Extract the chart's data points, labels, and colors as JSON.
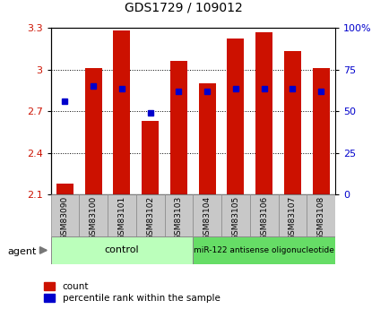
{
  "title": "GDS1729 / 109012",
  "samples": [
    "GSM83090",
    "GSM83100",
    "GSM83101",
    "GSM83102",
    "GSM83103",
    "GSM83104",
    "GSM83105",
    "GSM83106",
    "GSM83107",
    "GSM83108"
  ],
  "red_bar_values": [
    2.18,
    3.01,
    3.28,
    2.63,
    3.06,
    2.9,
    3.22,
    3.27,
    3.13,
    3.01
  ],
  "blue_square_values": [
    2.77,
    2.88,
    2.86,
    2.69,
    2.84,
    2.84,
    2.86,
    2.86,
    2.86,
    2.84
  ],
  "ymin": 2.1,
  "ymax": 3.3,
  "yticks_left": [
    2.1,
    2.4,
    2.7,
    3.0,
    3.3
  ],
  "ytick_labels_left": [
    "2.1",
    "2.4",
    "2.7",
    "3",
    "3.3"
  ],
  "yticks_right": [
    0,
    25,
    50,
    75,
    100
  ],
  "ytick_labels_right": [
    "0",
    "25",
    "50",
    "75",
    "100%"
  ],
  "bar_color": "#cc1100",
  "square_color": "#0000cc",
  "plot_bg_color": "#ffffff",
  "control_label": "control",
  "treatment_label": "miR-122 antisense oligonucleotide",
  "group_bg_color_light": "#bbffbb",
  "group_bg_color_dark": "#44cc44",
  "tick_label_bg": "#c8c8c8",
  "agent_label": "agent",
  "legend_count": "count",
  "legend_pct": "percentile rank within the sample"
}
